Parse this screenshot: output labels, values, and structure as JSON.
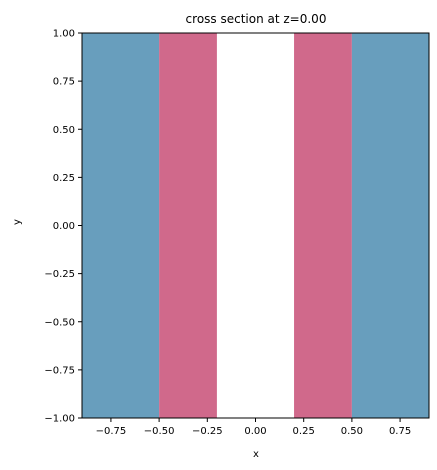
{
  "chart_data": {
    "type": "heatmap",
    "title": "cross section at z=0.00",
    "xlabel": "x",
    "ylabel": "y",
    "xlim": [
      -0.9,
      0.9
    ],
    "ylim": [
      -1.0,
      1.0
    ],
    "x_ticks": [
      -0.75,
      -0.5,
      -0.25,
      0.0,
      0.25,
      0.5,
      0.75
    ],
    "x_tick_labels": [
      "−0.75",
      "−0.50",
      "−0.25",
      "0.00",
      "0.25",
      "0.50",
      "0.75"
    ],
    "y_ticks": [
      -1.0,
      -0.75,
      -0.5,
      -0.25,
      0.0,
      0.25,
      0.5,
      0.75,
      1.0
    ],
    "y_tick_labels": [
      "−1.00",
      "−0.75",
      "−0.50",
      "−0.25",
      "0.00",
      "0.25",
      "0.50",
      "0.75",
      "1.00"
    ],
    "grid": false,
    "regions": [
      {
        "x0": -0.9,
        "x1": -0.5,
        "color": "#689ebd"
      },
      {
        "x0": -0.5,
        "x1": -0.2,
        "color": "#d0698b"
      },
      {
        "x0": -0.2,
        "x1": 0.2,
        "color": "#ffffff"
      },
      {
        "x0": 0.2,
        "x1": 0.5,
        "color": "#d0698b"
      },
      {
        "x0": 0.5,
        "x1": 0.9,
        "color": "#689ebd"
      }
    ]
  }
}
